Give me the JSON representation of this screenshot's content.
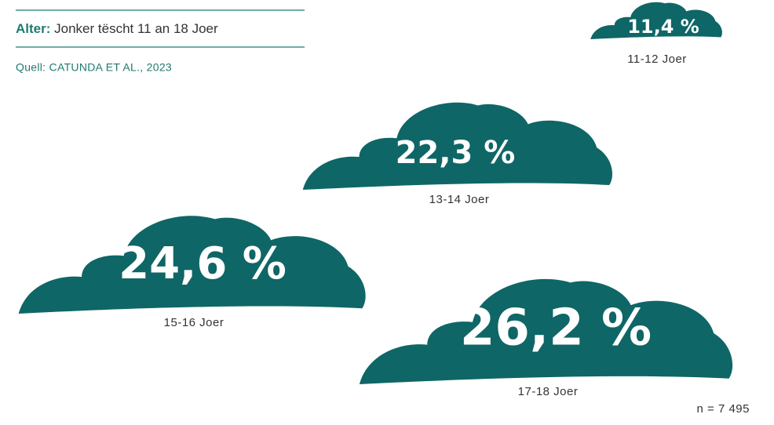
{
  "chart_data": {
    "type": "cloud",
    "header_label": "Alter:",
    "header_text": "Jonker tëscht 11 an 18 Joer",
    "source": "Quell: CATUNDA ET AL., 2023",
    "note": "n = 7 495",
    "categories": [
      "11-12 Joer",
      "13-14 Joer",
      "15-16 Joer",
      "17-18 Joer"
    ],
    "values": [
      11.4,
      22.3,
      24.6,
      26.2
    ],
    "value_labels": [
      "11,4 %",
      "22,3 %",
      "24,6 %",
      "26,2 %"
    ],
    "color": "#0f6666"
  }
}
